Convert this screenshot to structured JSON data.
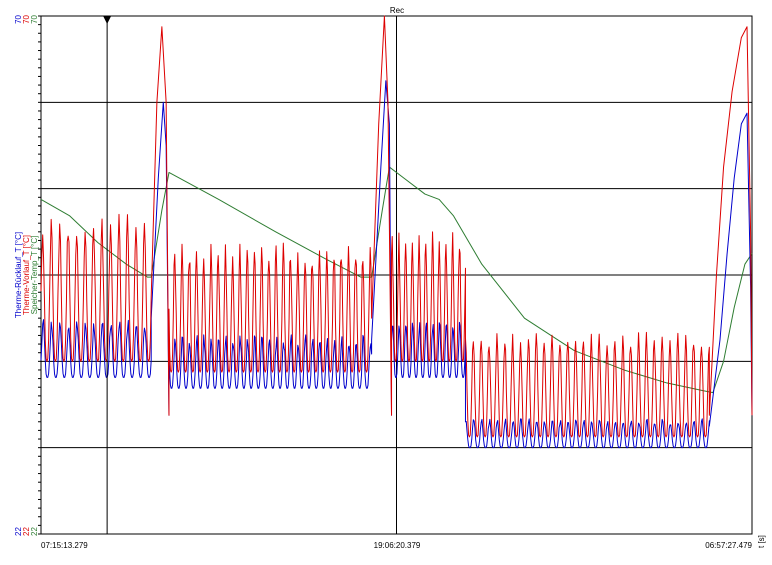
{
  "chart_data": {
    "type": "line",
    "title": "Rec",
    "xlabel": "t [s]",
    "x_ticks": [
      "07:15:13.279",
      "19:06:20.379",
      "06:57:27.479"
    ],
    "y_ticks": {
      "top": [
        "70",
        "70",
        "70"
      ],
      "bottom": [
        "22",
        "22",
        "22"
      ]
    },
    "ylim": [
      22,
      70
    ],
    "grid": true,
    "series": [
      {
        "name": "Therme-Rücklauf_T [°C]",
        "color": "#0000cc",
        "segments": [
          {
            "x0": 0.0,
            "x1": 0.155,
            "type": "osc",
            "cycles": 13,
            "lo": 36.5,
            "hi": 41.5,
            "jitter": 0.6,
            "phase": 0.0
          },
          {
            "x0": 0.155,
            "x1": 0.175,
            "type": "path",
            "x": [
              0.155,
              0.165,
              0.172,
              0.176,
              0.18
            ],
            "y": [
              42,
              55,
              62,
              58,
              33
            ]
          },
          {
            "x0": 0.18,
            "x1": 0.465,
            "type": "osc",
            "cycles": 28,
            "lo": 35.5,
            "hi": 40.0,
            "jitter": 0.7,
            "phase": 0.4
          },
          {
            "x0": 0.465,
            "x1": 0.49,
            "type": "path",
            "x": [
              0.465,
              0.478,
              0.485,
              0.49,
              0.493
            ],
            "y": [
              40,
              56,
              64,
              60,
              33
            ]
          },
          {
            "x0": 0.493,
            "x1": 0.597,
            "type": "osc",
            "cycles": 11,
            "lo": 36.5,
            "hi": 41.5,
            "jitter": 0.6,
            "phase": 0.1
          },
          {
            "x0": 0.597,
            "x1": 0.94,
            "type": "osc",
            "cycles": 31,
            "lo": 30.0,
            "hi": 32.5,
            "jitter": 0.3,
            "phase": 0.2
          },
          {
            "x0": 0.94,
            "x1": 1.0,
            "type": "path",
            "x": [
              0.94,
              0.955,
              0.965,
              0.975,
              0.985,
              0.993,
              0.998,
              1.0
            ],
            "y": [
              32,
              40,
              48,
              55,
              60,
              61,
              45,
              33
            ]
          }
        ]
      },
      {
        "name": "Therme-Vorlauf_T [°C]",
        "color": "#dd0000",
        "segments": [
          {
            "x0": 0.0,
            "x1": 0.155,
            "type": "osc",
            "cycles": 13,
            "lo": 38.0,
            "hi": 50.5,
            "jitter": 1.2,
            "phase": 0.05
          },
          {
            "x0": 0.155,
            "x1": 0.18,
            "type": "path",
            "x": [
              0.155,
              0.163,
              0.17,
              0.176,
              0.18
            ],
            "y": [
              44,
              62,
              69,
              62,
              33
            ]
          },
          {
            "x0": 0.18,
            "x1": 0.465,
            "type": "osc",
            "cycles": 28,
            "lo": 37.0,
            "hi": 48.0,
            "jitter": 1.2,
            "phase": 0.45
          },
          {
            "x0": 0.465,
            "x1": 0.493,
            "type": "path",
            "x": [
              0.465,
              0.475,
              0.483,
              0.488,
              0.493
            ],
            "y": [
              42,
              60,
              70,
              62,
              33
            ]
          },
          {
            "x0": 0.493,
            "x1": 0.597,
            "type": "osc",
            "cycles": 11,
            "lo": 38.0,
            "hi": 49.0,
            "jitter": 1.0,
            "phase": 0.15
          },
          {
            "x0": 0.597,
            "x1": 0.94,
            "type": "osc",
            "cycles": 31,
            "lo": 31.0,
            "hi": 40.0,
            "jitter": 0.7,
            "phase": 0.25
          },
          {
            "x0": 0.94,
            "x1": 1.0,
            "type": "path",
            "x": [
              0.94,
              0.95,
              0.96,
              0.972,
              0.985,
              0.993,
              0.998,
              1.0
            ],
            "y": [
              33,
              46,
              56,
              63,
              68,
              69,
              50,
              33
            ]
          }
        ]
      },
      {
        "name": "Speicher-Temp_T [°C]",
        "color": "#2e7d32",
        "points": {
          "x": [
            0.0,
            0.04,
            0.08,
            0.12,
            0.15,
            0.155,
            0.17,
            0.18,
            0.25,
            0.33,
            0.4,
            0.45,
            0.465,
            0.48,
            0.49,
            0.51,
            0.54,
            0.56,
            0.58,
            0.62,
            0.68,
            0.75,
            0.82,
            0.88,
            0.93,
            0.945,
            0.96,
            0.975,
            0.99,
            1.0
          ],
          "y": [
            53,
            51.5,
            49.0,
            47.0,
            45.8,
            45.8,
            52,
            55.5,
            53.0,
            50.0,
            47.5,
            45.8,
            45.8,
            52,
            56,
            55,
            53.5,
            53,
            51.5,
            47,
            42,
            39,
            37.2,
            36,
            35.3,
            35.1,
            38,
            43,
            47,
            48
          ]
        }
      }
    ],
    "cursors": [
      0.093,
      0.503
    ]
  }
}
